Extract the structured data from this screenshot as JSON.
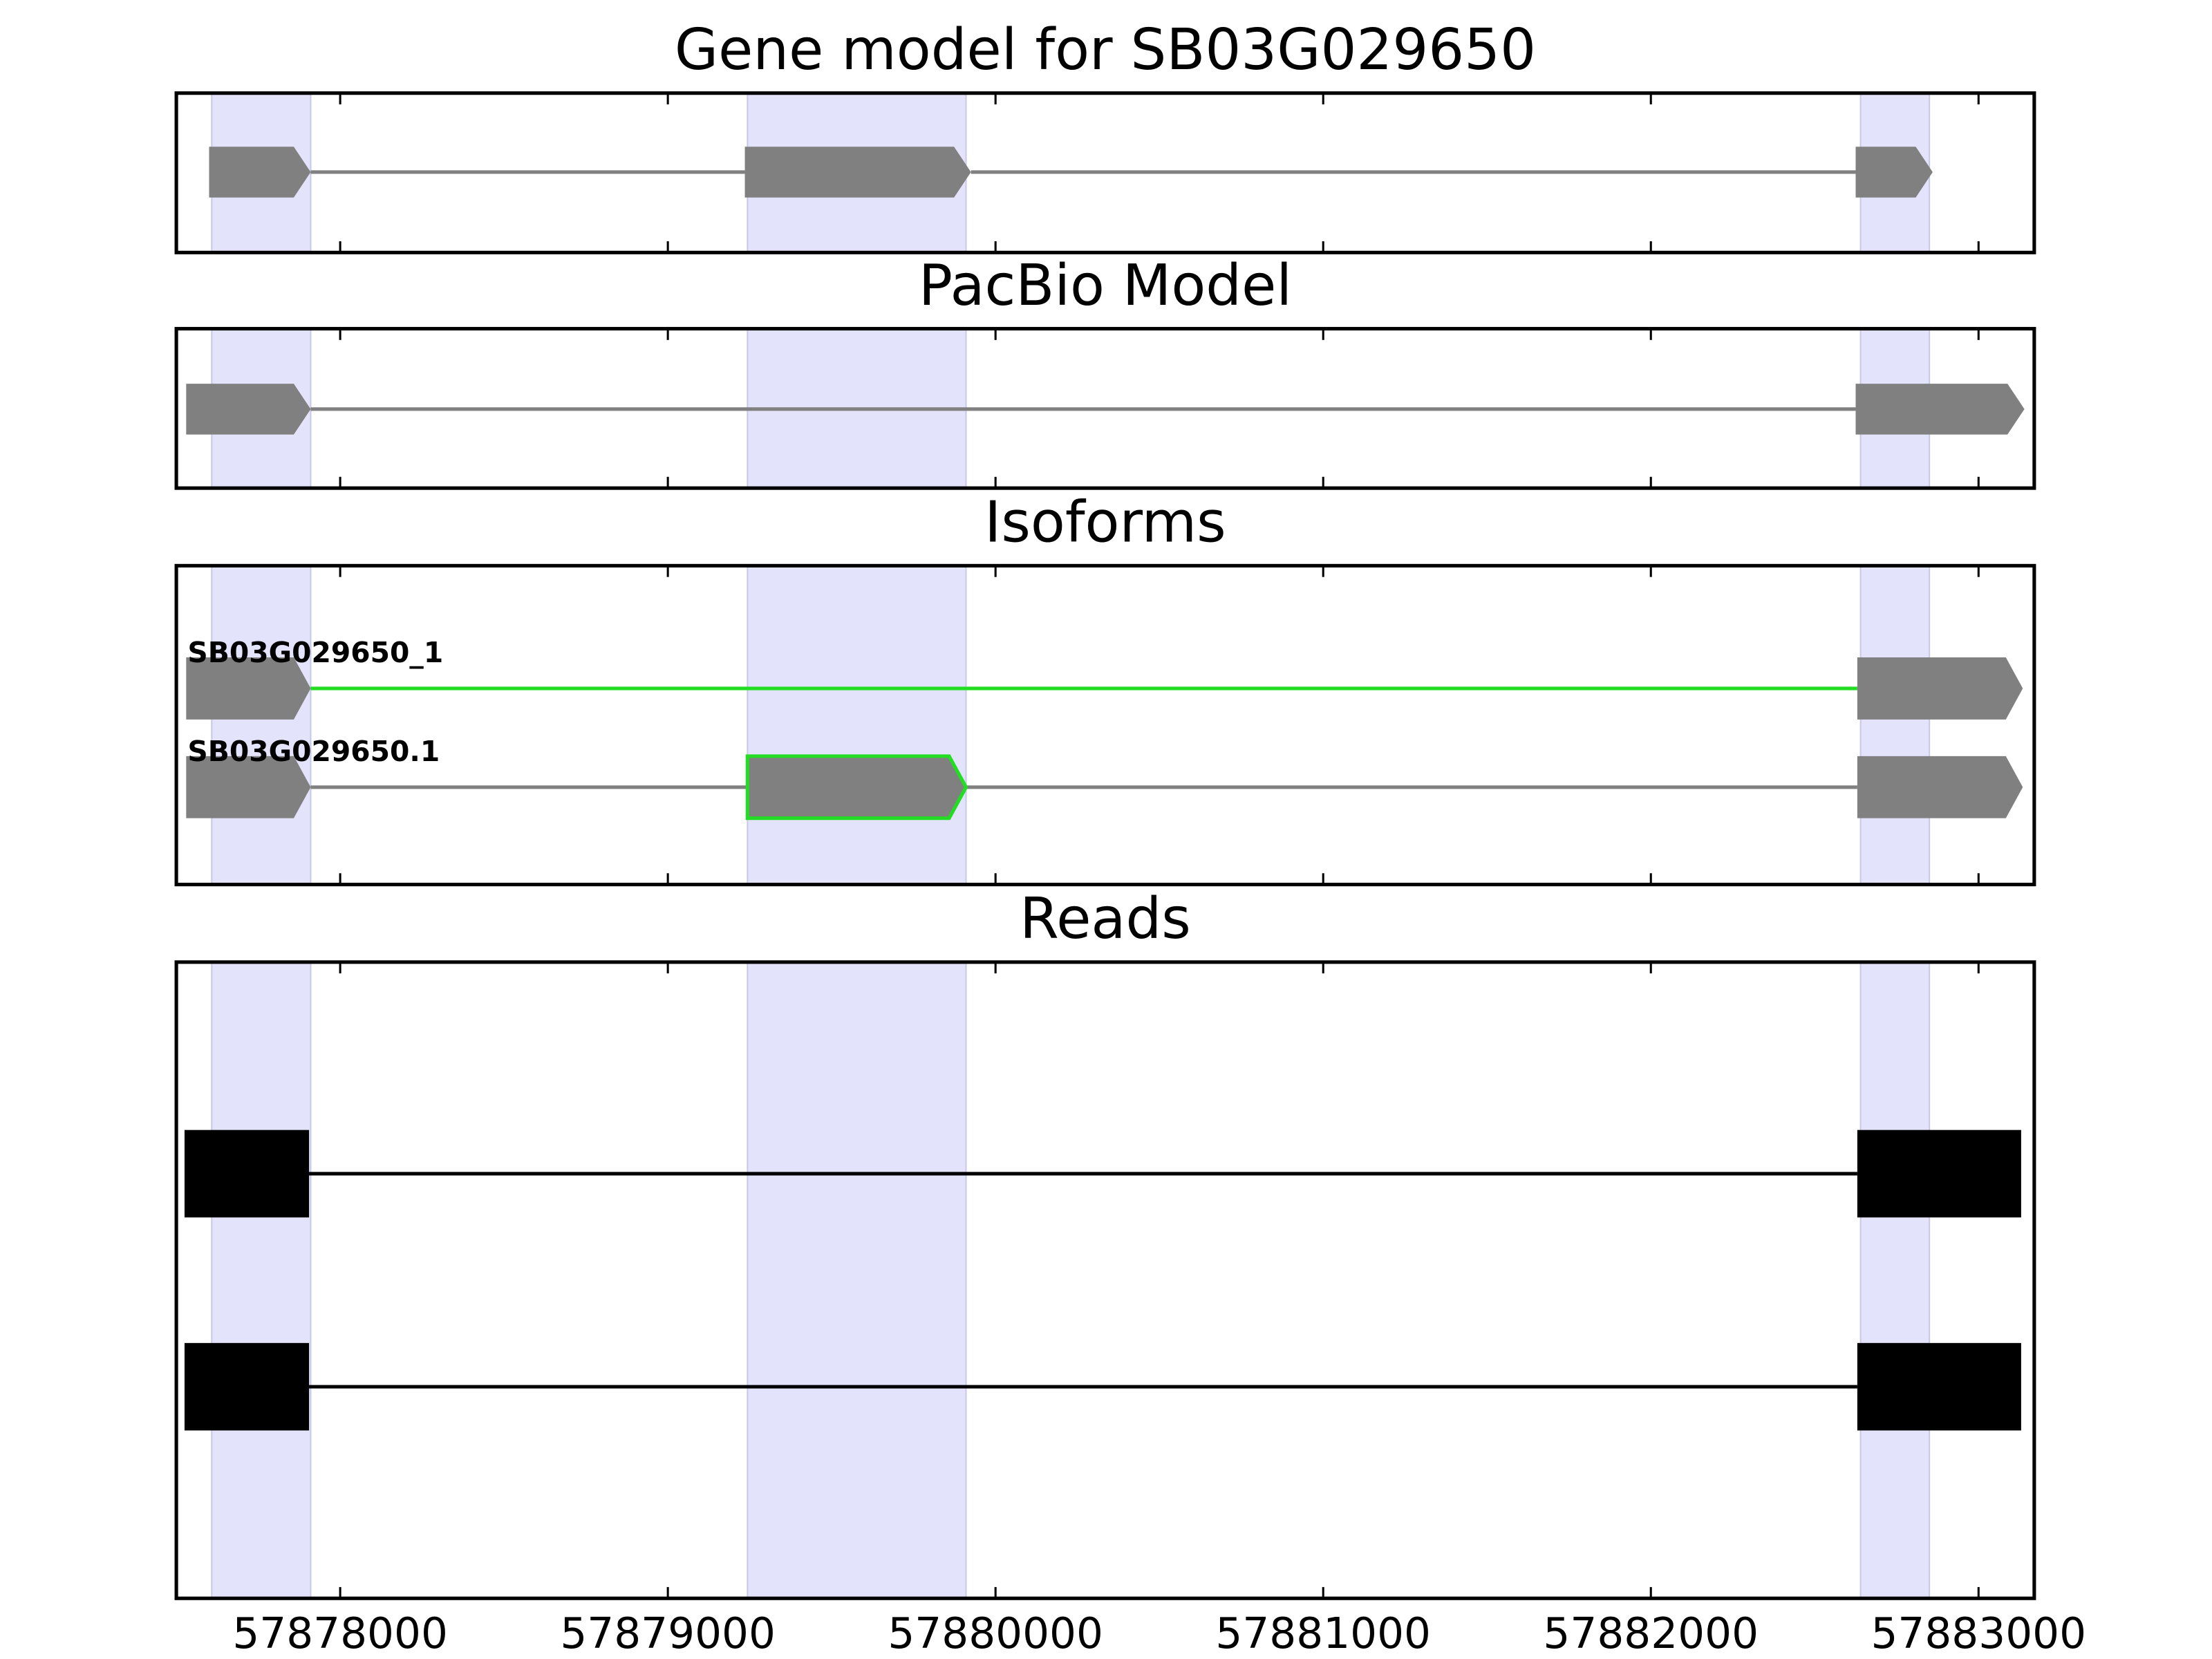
{
  "chart_data": [
    {
      "type": "track",
      "title": "Gene model for SB03G029650",
      "xlim": [
        57877500,
        57883170
      ],
      "xticks": [
        57878000,
        57879000,
        57880000,
        57881000,
        57882000,
        57883000
      ],
      "regions": [
        [
          57877608,
          57877910
        ],
        [
          57879243,
          57879910
        ],
        [
          57882640,
          57882850
        ]
      ],
      "region_color": "#e3e3fb",
      "features": [
        {
          "shape": "arrow",
          "color": "#808080",
          "line_color": "#808080",
          "exons": [
            [
              57877600,
              57877910
            ],
            [
              57879235,
              57879925
            ],
            [
              57882625,
              57882860
            ]
          ]
        }
      ]
    },
    {
      "type": "track",
      "title": "PacBio Model",
      "xlim": [
        57877500,
        57883170
      ],
      "xticks": [
        57878000,
        57879000,
        57880000,
        57881000,
        57882000,
        57883000
      ],
      "regions": [
        [
          57877608,
          57877910
        ],
        [
          57879243,
          57879910
        ],
        [
          57882640,
          57882850
        ]
      ],
      "region_color": "#e3e3fb",
      "features": [
        {
          "shape": "arrow",
          "color": "#808080",
          "line_color": "#808080",
          "exons": [
            [
              57877530,
              57877910
            ],
            [
              57882625,
              57883140
            ]
          ]
        }
      ]
    },
    {
      "type": "track",
      "title": "Isoforms",
      "xlim": [
        57877500,
        57883170
      ],
      "xticks": [
        57878000,
        57879000,
        57880000,
        57881000,
        57882000,
        57883000
      ],
      "regions": [
        [
          57877608,
          57877910
        ],
        [
          57879243,
          57879910
        ],
        [
          57882640,
          57882850
        ]
      ],
      "region_color": "#e3e3fb",
      "features": [
        {
          "name": "SB03G029650_1",
          "shape": "arrow",
          "color": "#808080",
          "line_color": "#22dd22",
          "exons": [
            [
              57877530,
              57877910
            ],
            [
              57882630,
              57883135
            ]
          ]
        },
        {
          "name": "SB03G029650.1",
          "shape": "arrow",
          "color": "#808080",
          "line_color": "#808080",
          "exons": [
            [
              57877530,
              57877910
            ],
            [
              57879243,
              57879910
            ],
            [
              57882630,
              57883135
            ]
          ],
          "exon_edges": [
            null,
            "#22dd22",
            null
          ]
        }
      ]
    },
    {
      "type": "track",
      "title": "Reads",
      "xtick_labels": true,
      "xlim": [
        57877500,
        57883170
      ],
      "xticks": [
        57878000,
        57879000,
        57880000,
        57881000,
        57882000,
        57883000
      ],
      "regions": [
        [
          57877608,
          57877910
        ],
        [
          57879243,
          57879910
        ],
        [
          57882640,
          57882850
        ]
      ],
      "region_color": "#e3e3fb",
      "features": [
        {
          "shape": "box",
          "color": "#000000",
          "line_color": "#000000",
          "exons": [
            [
              57877525,
              57877905
            ],
            [
              57882630,
              57883130
            ]
          ]
        },
        {
          "shape": "box",
          "color": "#000000",
          "line_color": "#000000",
          "exons": [
            [
              57877525,
              57877905
            ],
            [
              57882630,
              57883130
            ]
          ]
        }
      ]
    }
  ]
}
